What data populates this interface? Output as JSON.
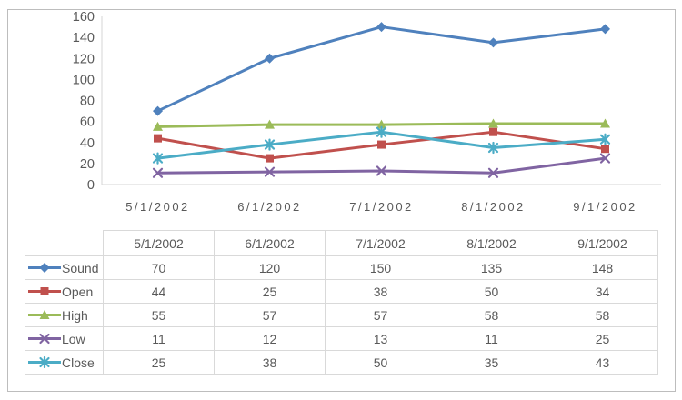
{
  "chart_data": {
    "type": "line",
    "title": "",
    "xlabel": "",
    "ylabel": "",
    "categories": [
      "5/1/2002",
      "6/1/2002",
      "7/1/2002",
      "8/1/2002",
      "9/1/2002"
    ],
    "series": [
      {
        "name": "Sound",
        "color": "#4F81BD",
        "marker": "diamond",
        "values": [
          70,
          120,
          150,
          135,
          148
        ]
      },
      {
        "name": "Open",
        "color": "#C0504D",
        "marker": "square",
        "values": [
          44,
          25,
          38,
          50,
          34
        ]
      },
      {
        "name": "High",
        "color": "#9BBB59",
        "marker": "triangle",
        "values": [
          55,
          57,
          57,
          58,
          58
        ]
      },
      {
        "name": "Low",
        "color": "#8064A2",
        "marker": "x",
        "values": [
          11,
          12,
          13,
          11,
          25
        ]
      },
      {
        "name": "Close",
        "color": "#4BACC6",
        "marker": "star",
        "values": [
          25,
          38,
          50,
          35,
          43
        ]
      }
    ],
    "ylim": [
      0,
      160
    ],
    "ytick_step": 20,
    "ytick_labels": [
      "0",
      "20",
      "40",
      "60",
      "80",
      "100",
      "120",
      "140",
      "160"
    ],
    "grid": false,
    "legend_position": "data-table-below"
  },
  "table": {
    "column_headers": [
      "5/1/2002",
      "6/1/2002",
      "7/1/2002",
      "8/1/2002",
      "9/1/2002"
    ],
    "row_headers": [
      "Sound",
      "Open",
      "High",
      "Low",
      "Close"
    ]
  },
  "style_colors": {
    "axis_line": "#d6d6d6",
    "table_border": "#d9d9d9",
    "tick_text": "#595959",
    "outer_border": "#bdbdbd"
  }
}
